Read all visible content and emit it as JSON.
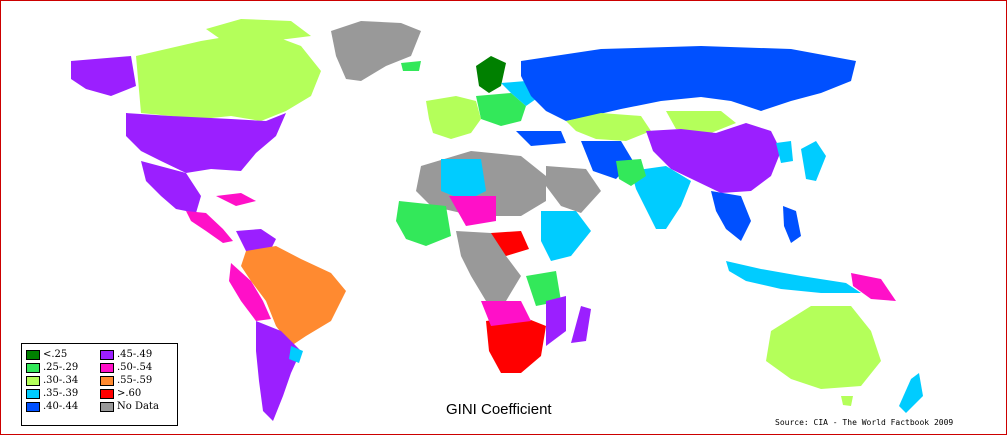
{
  "title": "GINI Coefficient",
  "source": "Source: CIA - The World Factbook 2009",
  "legend": [
    {
      "label": "<.25",
      "color": "#008000"
    },
    {
      "label": ".45-.49",
      "color": "#9b1fff"
    },
    {
      "label": ".25-.29",
      "color": "#33e85a"
    },
    {
      "label": ".50-.54",
      "color": "#ff10c8"
    },
    {
      "label": ".30-.34",
      "color": "#b4ff5a"
    },
    {
      "label": ".55-.59",
      "color": "#ff8a30"
    },
    {
      "label": ".35-.39",
      "color": "#00ccff"
    },
    {
      "label": ">.60",
      "color": "#ff0000"
    },
    {
      "label": ".40-.44",
      "color": "#0050ff"
    },
    {
      "label": "No Data",
      "color": "#999999"
    }
  ]
}
